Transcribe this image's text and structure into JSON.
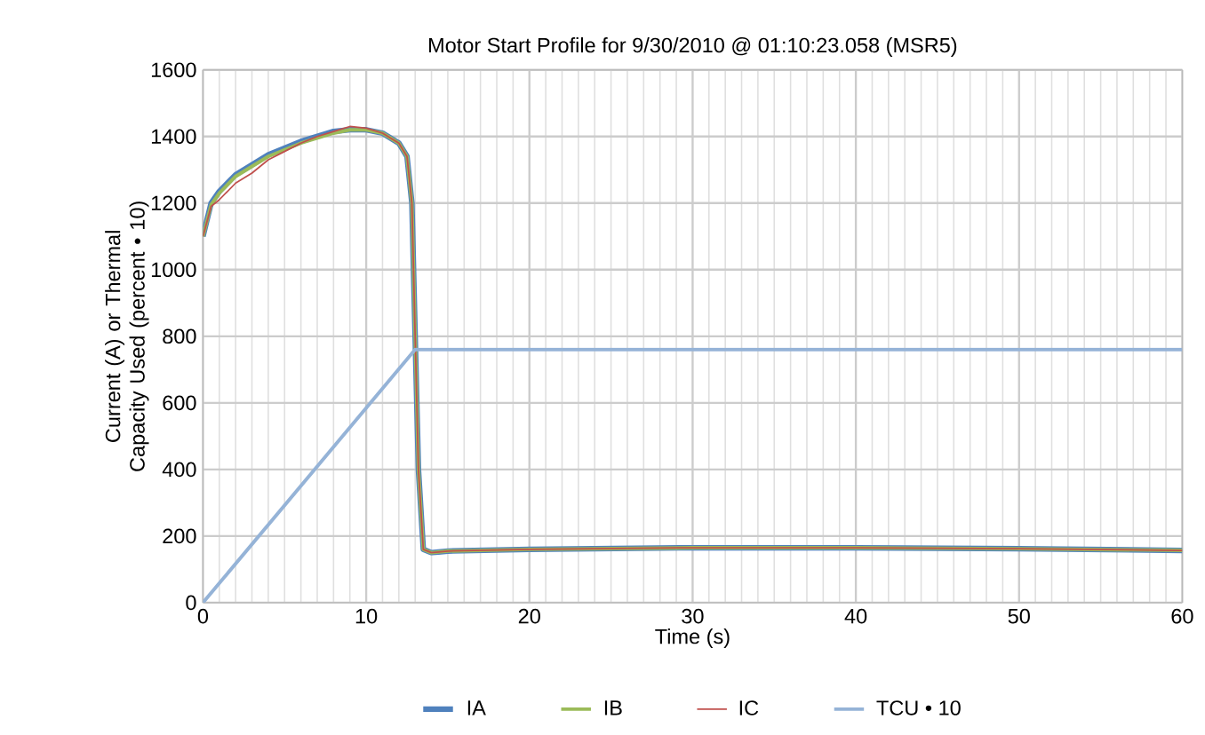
{
  "chart_data": {
    "type": "line",
    "title": "Motor Start Profile for 9/30/2010 @ 01:10:23.058 (MSR5)",
    "xlabel": "Time (s)",
    "ylabel": "Current (A) or Thermal Capacity Used (percent • 10)",
    "xlim": [
      0,
      60
    ],
    "ylim": [
      0,
      1600
    ],
    "xticks": [
      0,
      10,
      20,
      30,
      40,
      50,
      60
    ],
    "yticks": [
      0,
      200,
      400,
      600,
      800,
      1000,
      1200,
      1400,
      1600
    ],
    "grid": true,
    "legend": "bottom",
    "x": [
      0,
      0.5,
      1,
      2,
      3,
      4,
      5,
      6,
      7,
      8,
      9,
      10,
      11,
      12,
      12.5,
      12.8,
      13,
      13.2,
      13.5,
      14,
      15,
      20,
      30,
      40,
      50,
      60
    ],
    "series": [
      {
        "name": "IA",
        "color": "#4f81bd",
        "values": [
          1100,
          1200,
          1235,
          1285,
          1315,
          1345,
          1365,
          1385,
          1400,
          1415,
          1420,
          1420,
          1410,
          1380,
          1340,
          1200,
          800,
          400,
          160,
          150,
          155,
          160,
          165,
          165,
          162,
          157
        ]
      },
      {
        "name": "IB",
        "color": "#9bbb59",
        "values": [
          1100,
          1195,
          1230,
          1280,
          1310,
          1340,
          1360,
          1380,
          1395,
          1410,
          1420,
          1420,
          1410,
          1380,
          1340,
          1200,
          800,
          400,
          160,
          150,
          155,
          160,
          165,
          165,
          162,
          157
        ]
      },
      {
        "name": "IC",
        "color": "#c0504d",
        "values": [
          1100,
          1190,
          1210,
          1260,
          1290,
          1330,
          1355,
          1380,
          1400,
          1415,
          1430,
          1425,
          1410,
          1380,
          1340,
          1200,
          800,
          400,
          160,
          150,
          155,
          160,
          165,
          165,
          162,
          157
        ]
      },
      {
        "name": "TCU • 10",
        "color": "#95b3d7",
        "x": [
          0,
          13,
          60
        ],
        "values": [
          0,
          760,
          760
        ]
      }
    ]
  }
}
